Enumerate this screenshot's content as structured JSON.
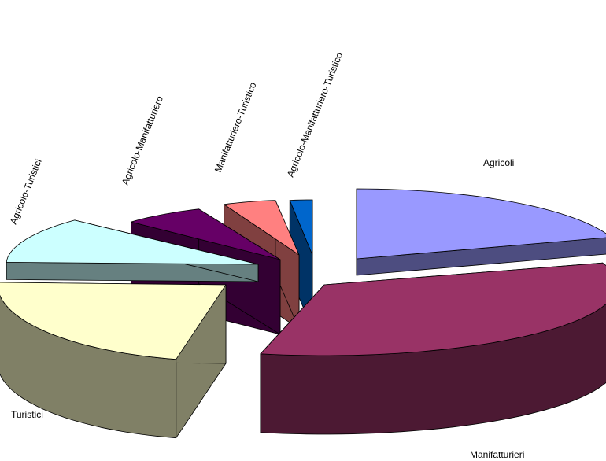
{
  "chart_data": {
    "type": "pie",
    "style": "3d-exploded",
    "legend": "none",
    "slices": [
      {
        "label": "Agricoli",
        "value": 20.0,
        "color": "#9999FF",
        "side": "#4D4D80",
        "rim": "#4D4D80",
        "drawOrder": 6
      },
      {
        "label": "Manifatturieri",
        "value": 33.5,
        "color": "#993366",
        "side": "#4C1933",
        "rim": "#4C1933",
        "drawOrder": 7
      },
      {
        "label": "Turistici",
        "value": 22.0,
        "color": "#FFFFCC",
        "side": "#808066",
        "rim": "#808066",
        "drawOrder": 5
      },
      {
        "label": "Agricolo-Turistici",
        "value": 11.5,
        "color": "#CCFFFF",
        "side": "#668080",
        "rim": "#668080",
        "drawOrder": 4
      },
      {
        "label": "Agricolo-Manifatturiero",
        "value": 6.5,
        "color": "#660066",
        "side": "#330033",
        "rim": "#330033",
        "drawOrder": 3
      },
      {
        "label": "Manifatturiero-Turistico",
        "value": 4.5,
        "color": "#FF8080",
        "side": "#804040",
        "rim": "#804040",
        "drawOrder": 2
      },
      {
        "label": "Agricolo-Manifatturiero-Turistico",
        "value": 2.0,
        "color": "#0066CC",
        "side": "#003366",
        "rim": "#003366",
        "drawOrder": 1
      }
    ]
  }
}
